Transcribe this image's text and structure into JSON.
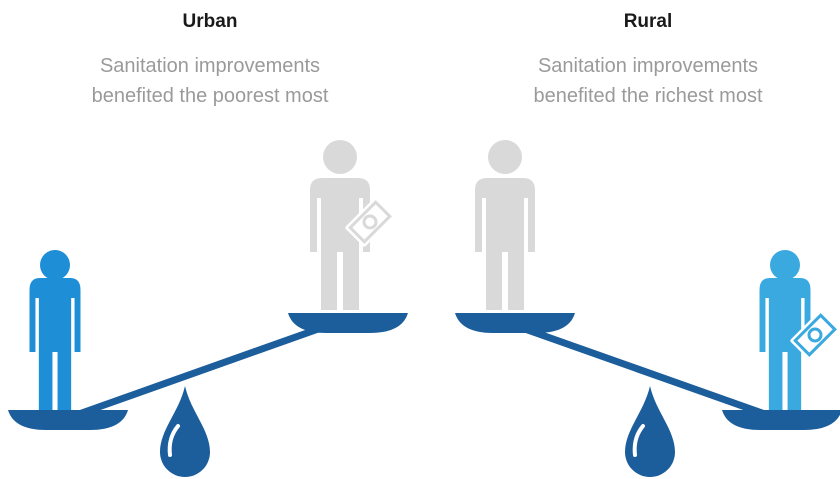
{
  "panels": [
    {
      "title": "Urban",
      "subtitle": [
        "Sanitation improvements",
        "benefited the poorest most"
      ]
    },
    {
      "title": "Rural",
      "subtitle": [
        "Sanitation improvements",
        "benefited the richest most"
      ]
    }
  ]
}
